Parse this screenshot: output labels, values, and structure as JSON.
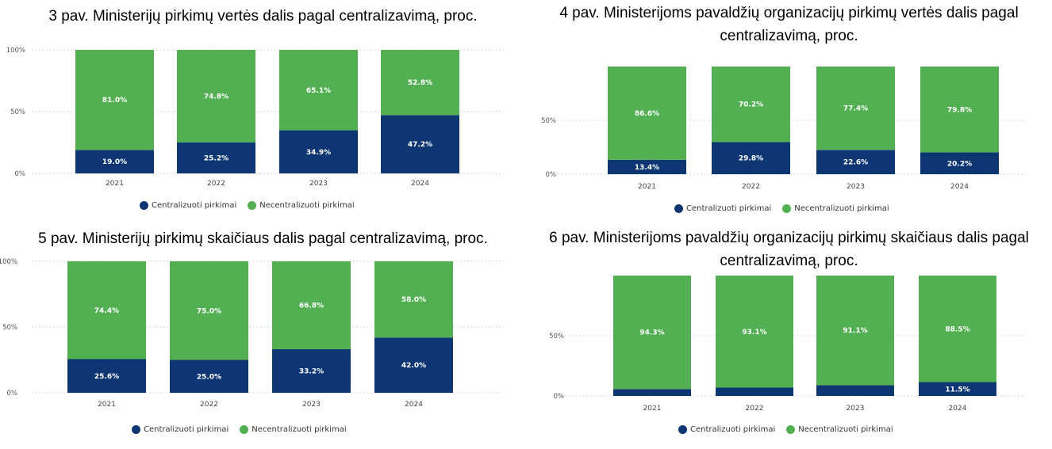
{
  "colors": {
    "centralized": "#0e3673",
    "decentralized": "#52b052",
    "grid": "#c8c8c8"
  },
  "chart_data": [
    {
      "type": "bar",
      "stacked": true,
      "title": "3 pav. Ministerijų pirkimų vertės dalis pagal centralizavimą, proc.",
      "categories": [
        "2021",
        "2022",
        "2023",
        "2024"
      ],
      "yticks": [
        "100%",
        "50%",
        "0%"
      ],
      "ylim": [
        0,
        100
      ],
      "series": [
        {
          "name": "Centralizuoti pirkimai",
          "values": [
            19.0,
            25.2,
            34.9,
            47.2
          ],
          "labels": [
            "19.0%",
            "25.2%",
            "34.9%",
            "47.2%"
          ]
        },
        {
          "name": "Necentralizuoti pirkimai",
          "values": [
            81.0,
            74.8,
            65.1,
            52.8
          ],
          "labels": [
            "81.0%",
            "74.8%",
            "65.1%",
            "52.8%"
          ]
        }
      ],
      "legend": "bottom"
    },
    {
      "type": "bar",
      "stacked": true,
      "title": "4 pav. Ministerijoms pavaldžių organizacijų pirkimų vertės dalis pagal centralizavimą, proc.",
      "categories": [
        "2021",
        "2022",
        "2023",
        "2024"
      ],
      "yticks": [
        "50%",
        "0%"
      ],
      "ylim": [
        0,
        100
      ],
      "series": [
        {
          "name": "Centralizuoti pirkimai",
          "values": [
            13.4,
            29.8,
            22.6,
            20.2
          ],
          "labels": [
            "13.4%",
            "29.8%",
            "22.6%",
            "20.2%"
          ]
        },
        {
          "name": "Necentralizuoti pirkimai",
          "values": [
            86.6,
            70.2,
            77.4,
            79.8
          ],
          "labels": [
            "86.6%",
            "70.2%",
            "77.4%",
            "79.8%"
          ]
        }
      ],
      "legend": "bottom"
    },
    {
      "type": "bar",
      "stacked": true,
      "title": "5 pav. Ministerijų pirkimų skaičiaus dalis pagal centralizavimą, proc.",
      "categories": [
        "2021",
        "2022",
        "2023",
        "2024"
      ],
      "yticks": [
        "100%",
        "50%",
        "0%"
      ],
      "ylim": [
        0,
        100
      ],
      "series": [
        {
          "name": "Centralizuoti pirkimai",
          "values": [
            25.6,
            25.0,
            33.2,
            42.0
          ],
          "labels": [
            "25.6%",
            "25.0%",
            "33.2%",
            "42.0%"
          ]
        },
        {
          "name": "Necentralizuoti pirkimai",
          "values": [
            74.4,
            75.0,
            66.8,
            58.0
          ],
          "labels": [
            "74.4%",
            "75.0%",
            "66.8%",
            "58.0%"
          ]
        }
      ],
      "legend": "bottom"
    },
    {
      "type": "bar",
      "stacked": true,
      "title": "6 pav. Ministerijoms pavaldžių organizacijų pirkimų skaičiaus dalis pagal centralizavimą, proc.",
      "categories": [
        "2021",
        "2022",
        "2023",
        "2024"
      ],
      "yticks": [
        "50%",
        "0%"
      ],
      "ylim": [
        0,
        100
      ],
      "series": [
        {
          "name": "Centralizuoti pirkimai",
          "values": [
            5.7,
            6.9,
            8.9,
            11.5
          ],
          "labels": [
            "",
            "",
            "",
            "11.5%"
          ]
        },
        {
          "name": "Necentralizuoti pirkimai",
          "values": [
            94.3,
            93.1,
            91.1,
            88.5
          ],
          "labels": [
            "94.3%",
            "93.1%",
            "91.1%",
            "88.5%"
          ]
        }
      ],
      "legend": "bottom"
    }
  ]
}
